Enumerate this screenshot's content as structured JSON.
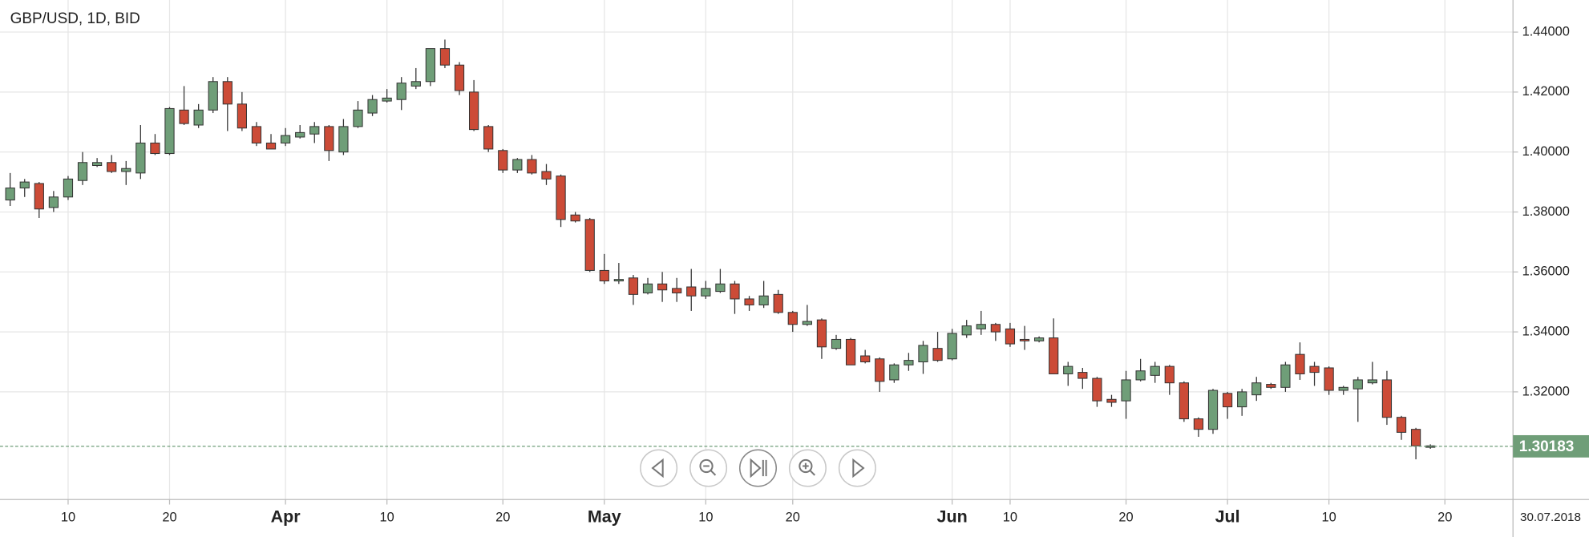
{
  "chart_data": {
    "type": "candlestick",
    "title": "GBP/USD, 1D, BID",
    "date_label": "30.07.2018",
    "last_price": 1.30183,
    "up_color": "#6f9e78",
    "down_color": "#cc4b37",
    "grid": true,
    "x": [
      0,
      1,
      2,
      3,
      4,
      5,
      6,
      7,
      8,
      9,
      10,
      11,
      12,
      13,
      14,
      15,
      16,
      17,
      18,
      19,
      20,
      21,
      22,
      23,
      24,
      25,
      26,
      27,
      28,
      29,
      30,
      31,
      32,
      33,
      34,
      35,
      36,
      37,
      38,
      39,
      40,
      41,
      42,
      43,
      44,
      45,
      46,
      47,
      48,
      49,
      50,
      51,
      52,
      53,
      54,
      55,
      56,
      57,
      58,
      59,
      60,
      61,
      62,
      63,
      64,
      65,
      66,
      67,
      68,
      69,
      70,
      71,
      72,
      73,
      74,
      75,
      76,
      77,
      78,
      79,
      80,
      81,
      82,
      83,
      84,
      85,
      86,
      87,
      88,
      89,
      90,
      91,
      92,
      93,
      94,
      95,
      96,
      97,
      98
    ],
    "open": [
      1.384,
      1.388,
      1.3895,
      1.3815,
      1.385,
      1.3905,
      1.3955,
      1.3965,
      1.3935,
      1.393,
      1.403,
      1.3995,
      1.414,
      1.409,
      1.414,
      1.4235,
      1.416,
      1.4085,
      1.403,
      1.403,
      1.405,
      1.406,
      1.4085,
      1.4,
      1.4085,
      1.413,
      1.417,
      1.4175,
      1.422,
      1.4235,
      1.4345,
      1.429,
      1.42,
      1.4085,
      1.4005,
      1.394,
      1.3975,
      1.3935,
      1.392,
      1.379,
      1.3775,
      1.3605,
      1.357,
      1.358,
      1.353,
      1.356,
      1.3545,
      1.355,
      1.352,
      1.3535,
      1.356,
      1.351,
      1.349,
      1.3525,
      1.3465,
      1.3425,
      1.344,
      1.3345,
      1.3375,
      1.332,
      1.331,
      1.324,
      1.329,
      1.33,
      1.3345,
      1.331,
      1.339,
      1.341,
      1.3425,
      1.341,
      1.3375,
      1.337,
      1.338,
      1.326,
      1.3265,
      1.3245,
      1.3175,
      1.317,
      1.324,
      1.3255,
      1.3285,
      1.323,
      1.311,
      1.3075,
      1.3195,
      1.315,
      1.319,
      1.3225,
      1.3215,
      1.3325,
      1.3285,
      1.328,
      1.3205,
      1.321,
      1.323,
      1.324,
      1.3115,
      1.3075,
      1.3015
    ],
    "high": [
      1.393,
      1.391,
      1.39,
      1.387,
      1.392,
      1.4,
      1.398,
      1.399,
      1.397,
      1.409,
      1.406,
      1.415,
      1.422,
      1.416,
      1.425,
      1.425,
      1.42,
      1.41,
      1.406,
      1.408,
      1.409,
      1.41,
      1.409,
      1.411,
      1.417,
      1.419,
      1.421,
      1.425,
      1.428,
      1.4345,
      1.4375,
      1.43,
      1.424,
      1.409,
      1.401,
      1.398,
      1.399,
      1.396,
      1.3925,
      1.38,
      1.378,
      1.366,
      1.363,
      1.359,
      1.358,
      1.36,
      1.358,
      1.361,
      1.357,
      1.361,
      1.357,
      1.352,
      1.357,
      1.354,
      1.347,
      1.349,
      1.3445,
      1.339,
      1.338,
      1.334,
      1.3315,
      1.3295,
      1.333,
      1.337,
      1.34,
      1.341,
      1.344,
      1.347,
      1.343,
      1.343,
      1.342,
      1.3385,
      1.3445,
      1.33,
      1.328,
      1.325,
      1.319,
      1.327,
      1.331,
      1.33,
      1.329,
      1.3235,
      1.3115,
      1.321,
      1.32,
      1.321,
      1.325,
      1.323,
      1.33,
      1.3365,
      1.33,
      1.3285,
      1.322,
      1.325,
      1.33,
      1.327,
      1.312,
      1.308,
      1.3025
    ],
    "low": [
      1.382,
      1.385,
      1.378,
      1.38,
      1.384,
      1.389,
      1.395,
      1.393,
      1.389,
      1.391,
      1.399,
      1.399,
      1.409,
      1.408,
      1.413,
      1.407,
      1.407,
      1.402,
      1.401,
      1.402,
      1.4045,
      1.403,
      1.397,
      1.399,
      1.408,
      1.412,
      1.4165,
      1.414,
      1.421,
      1.422,
      1.428,
      1.419,
      1.407,
      1.4,
      1.393,
      1.393,
      1.3925,
      1.389,
      1.375,
      1.3765,
      1.36,
      1.356,
      1.356,
      1.349,
      1.3525,
      1.35,
      1.35,
      1.347,
      1.351,
      1.353,
      1.346,
      1.347,
      1.348,
      1.346,
      1.34,
      1.342,
      1.331,
      1.334,
      1.329,
      1.3295,
      1.32,
      1.323,
      1.327,
      1.326,
      1.33,
      1.3305,
      1.338,
      1.339,
      1.337,
      1.335,
      1.334,
      1.3365,
      1.326,
      1.322,
      1.321,
      1.315,
      1.315,
      1.311,
      1.3235,
      1.323,
      1.319,
      1.31,
      1.305,
      1.306,
      1.311,
      1.312,
      1.317,
      1.321,
      1.32,
      1.324,
      1.322,
      1.319,
      1.319,
      1.31,
      1.3225,
      1.309,
      1.304,
      1.2975,
      1.301
    ],
    "close": [
      1.388,
      1.39,
      1.381,
      1.385,
      1.391,
      1.3965,
      1.3965,
      1.3935,
      1.3945,
      1.403,
      1.3995,
      1.4145,
      1.4095,
      1.414,
      1.4235,
      1.416,
      1.408,
      1.403,
      1.401,
      1.4055,
      1.4065,
      1.4085,
      1.4005,
      1.4085,
      1.414,
      1.4175,
      1.418,
      1.423,
      1.4235,
      1.4345,
      1.429,
      1.4205,
      1.4075,
      1.401,
      1.394,
      1.3975,
      1.393,
      1.391,
      1.3775,
      1.377,
      1.3605,
      1.357,
      1.3575,
      1.3525,
      1.356,
      1.354,
      1.353,
      1.352,
      1.3545,
      1.356,
      1.351,
      1.349,
      1.352,
      1.3465,
      1.3425,
      1.3435,
      1.335,
      1.3375,
      1.329,
      1.33,
      1.3235,
      1.329,
      1.3305,
      1.3355,
      1.3305,
      1.3395,
      1.342,
      1.3425,
      1.34,
      1.336,
      1.337,
      1.338,
      1.326,
      1.3285,
      1.3245,
      1.317,
      1.3165,
      1.324,
      1.327,
      1.3285,
      1.323,
      1.311,
      1.3075,
      1.3205,
      1.315,
      1.32,
      1.323,
      1.3215,
      1.329,
      1.326,
      1.3265,
      1.3205,
      1.3215,
      1.324,
      1.324,
      1.3115,
      1.3065,
      1.302,
      1.302
    ],
    "xlim": [
      -0.7,
      103.7
    ],
    "xticks": [
      {
        "value": 4,
        "label": "10"
      },
      {
        "value": 11,
        "label": "20"
      },
      {
        "value": 19,
        "label": "Apr"
      },
      {
        "value": 26,
        "label": "10"
      },
      {
        "value": 34,
        "label": "20"
      },
      {
        "value": 41,
        "label": "May"
      },
      {
        "value": 48,
        "label": "10"
      },
      {
        "value": 54,
        "label": "20"
      },
      {
        "value": 65,
        "label": "Jun"
      },
      {
        "value": 69,
        "label": "10"
      },
      {
        "value": 77,
        "label": "20"
      },
      {
        "value": 84,
        "label": "Jul"
      },
      {
        "value": 91,
        "label": "10"
      },
      {
        "value": 99,
        "label": "20"
      }
    ],
    "ylim": [
      1.2841,
      1.4507
    ],
    "yticks": [
      {
        "value": 1.32,
        "label": "1.32000"
      },
      {
        "value": 1.34,
        "label": "1.34000"
      },
      {
        "value": 1.36,
        "label": "1.36000"
      },
      {
        "value": 1.38,
        "label": "1.38000"
      },
      {
        "value": 1.4,
        "label": "1.40000"
      },
      {
        "value": 1.42,
        "label": "1.42000"
      },
      {
        "value": 1.44,
        "label": "1.44000"
      }
    ]
  }
}
